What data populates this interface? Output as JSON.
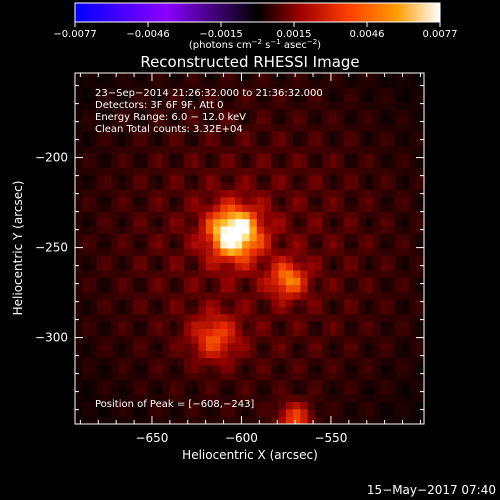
{
  "chart_data": {
    "type": "heatmap",
    "title": "Reconstructed RHESSI Image",
    "xlabel": "Heliocentric X (arcsec)",
    "ylabel": "Heliocentric Y (arcsec)",
    "xlim": [
      -693,
      -498
    ],
    "ylim": [
      -348,
      -153
    ],
    "xticks": [
      -650,
      -600,
      -550
    ],
    "yticks": [
      -200,
      -250,
      -300
    ],
    "colorbar": {
      "label_main": "(photons cm",
      "exp1": "−2",
      "label_mid": " s",
      "exp2": "−1",
      "label_mid2": " asec",
      "exp3": "−2",
      "label_end": ")",
      "min": -0.0077,
      "max": 0.0077,
      "ticks": [
        "−0.0077",
        "−0.0046",
        "−0.0015",
        "0.0015",
        "0.0046",
        "0.0077"
      ],
      "colors": [
        "#0000ff",
        "#8a00ff",
        "#000000",
        "#a00000",
        "#ff4000",
        "#ff9a00",
        "#ffffff"
      ]
    },
    "annotations": [
      "23−Sep−2014 21:26:32.000 to 21:36:32.000",
      "Detectors: 3F 6F 9F, Att 0",
      "Energy Range: 6.0 − 12.0 keV",
      "Clean    Total counts: 3.32E+04"
    ],
    "peak_label": "Position of Peak = [−608,−243]",
    "sources": [
      {
        "x": -604,
        "y": -242,
        "peak": 1.0,
        "sigma": 10
      },
      {
        "x": -574,
        "y": -268,
        "peak": 0.55,
        "sigma": 7
      },
      {
        "x": -615,
        "y": -300,
        "peak": 0.45,
        "sigma": 9
      },
      {
        "x": -570,
        "y": -345,
        "peak": 0.5,
        "sigma": 6
      }
    ],
    "background_level": 0.3,
    "stamp": "15−May−2017 07:40"
  }
}
